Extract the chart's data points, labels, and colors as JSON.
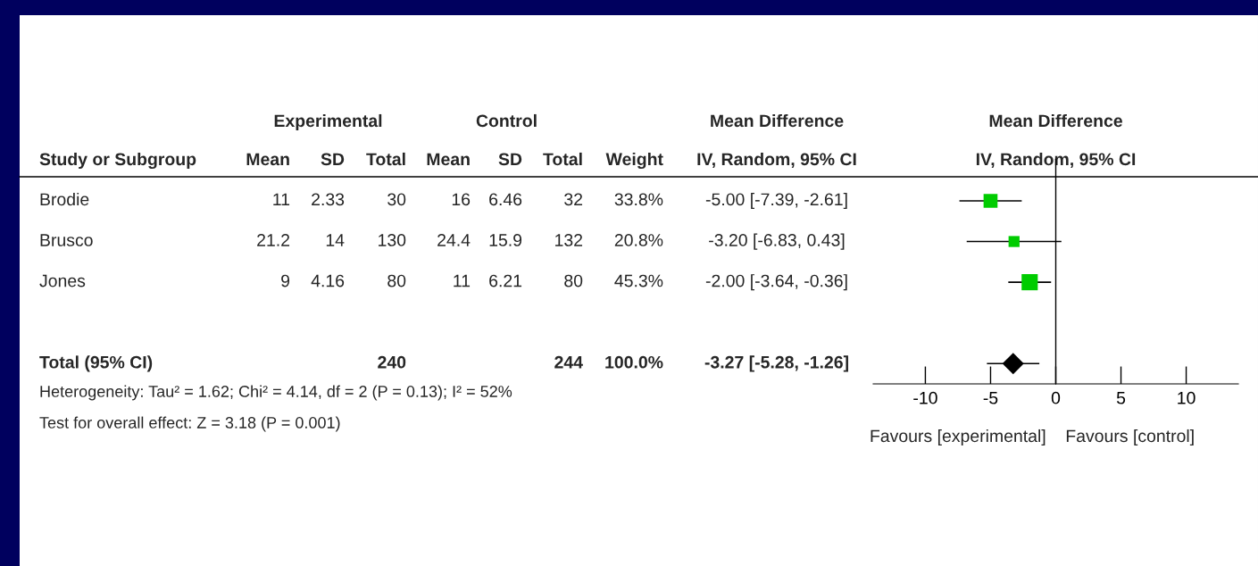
{
  "chart_data": [
    {
      "type": "other",
      "categories": [
        "Study or Subgroup",
        "Mean",
        "SD",
        "Total",
        "Mean",
        "SD",
        "Total",
        "Weight",
        "IV, Random, 95% CI"
      ],
      "y_categories": [
        "Brodie",
        "Brusco",
        "Jones",
        null,
        "Total (95% CI)"
      ],
      "cell_labels": [
        [
          "11",
          "2.33",
          "30",
          "16",
          "6.46",
          "32",
          "33.8%",
          "-5.00 [-7.39, -2.61]"
        ],
        [
          "21.2",
          "14",
          "130",
          "24.4",
          "15.9",
          "132",
          "20.8%",
          "-3.20 [-6.83, 0.43]"
        ],
        [
          "9",
          "4.16",
          "80",
          "11",
          "6.21",
          "80",
          "45.3%",
          "-2.00 [-3.64, -0.36]"
        ],
        [
          null,
          null,
          null,
          null,
          null,
          null,
          null,
          null
        ],
        [
          null,
          null,
          "240",
          null,
          null,
          "244",
          "100.0%",
          "-3.27 [-5.28, -1.26]"
        ]
      ],
      "annotations": [
        "Experimental",
        "Control",
        "Mean Difference",
        "Heterogeneity: Tau² = 1.62; Chi² = 4.14, df = 2 (P = 0.13); I² = 52%",
        "Test for overall effect: Z = 3.18 (P = 0.001)"
      ]
    },
    {
      "type": "scatter",
      "orientation": "horizontal",
      "title": "Mean Difference",
      "subtitle": "IV, Random, 95% CI",
      "categories": [
        null,
        null,
        null,
        null,
        null
      ],
      "series": [
        {
          "color": "#00cc00",
          "marker": "square",
          "values": [
            -5.0,
            -3.2,
            -2.0,
            null,
            null
          ],
          "errors": [
            [
              -7.39,
              -2.61
            ],
            [
              -6.83,
              0.43
            ],
            [
              -3.64,
              -0.36
            ],
            null,
            null
          ],
          "sizes": [
            0.746,
            0.459,
            1,
            null,
            null
          ]
        },
        {
          "color": "#000000",
          "marker": "diamond",
          "values": [
            null,
            null,
            null,
            null,
            -3.27
          ],
          "errors": [
            null,
            null,
            null,
            null,
            [
              -5.28,
              -1.26
            ]
          ]
        }
      ],
      "xlim": [
        -14,
        14
      ],
      "xticks": [
        -10,
        -5,
        0,
        5,
        10
      ],
      "ref_lines": [
        {
          "axis": "x",
          "value": 0
        }
      ],
      "annotations": [
        "Favours [experimental]",
        "Favours [control]"
      ]
    }
  ]
}
